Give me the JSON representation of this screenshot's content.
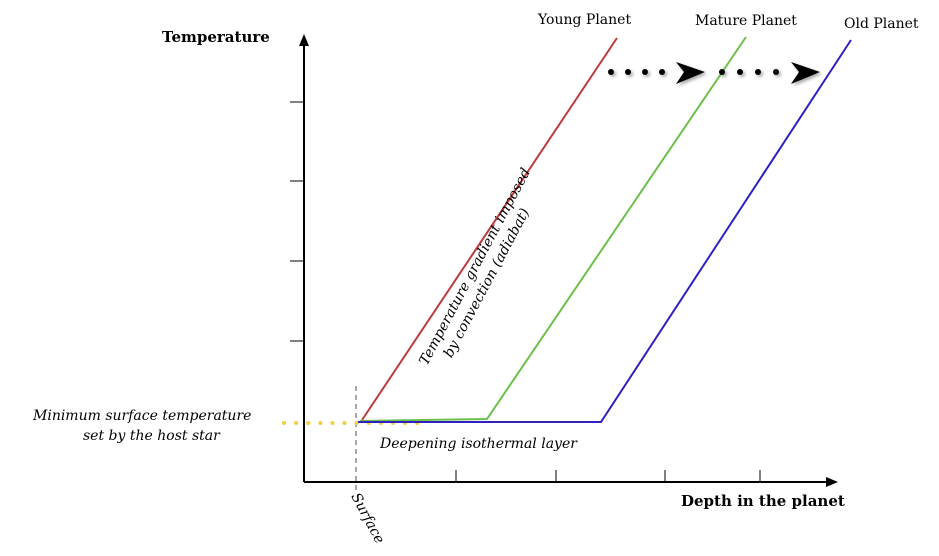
{
  "axes": {
    "y_label": "Temperature",
    "x_label": "Depth in the planet"
  },
  "planets": [
    {
      "name": "Young Planet",
      "color": "#c0393f"
    },
    {
      "name": "Mature Planet",
      "color": "#6cc04a"
    },
    {
      "name": "Old Planet",
      "color": "#3020c0"
    }
  ],
  "annotations": {
    "min_temp_line1": "Minimum surface temperature",
    "min_temp_line2": "set by the host star",
    "isothermal": "Deepening isothermal layer",
    "adiabat_line1": "Temperature gradient imposed",
    "adiabat_line2": "by convection (adiabat)",
    "surface": "Surface"
  },
  "colors": {
    "axis": "#000000",
    "min_temp_dots": "#f0d040",
    "surface_dash": "#aaaaaa",
    "arrow": "#000000"
  }
}
